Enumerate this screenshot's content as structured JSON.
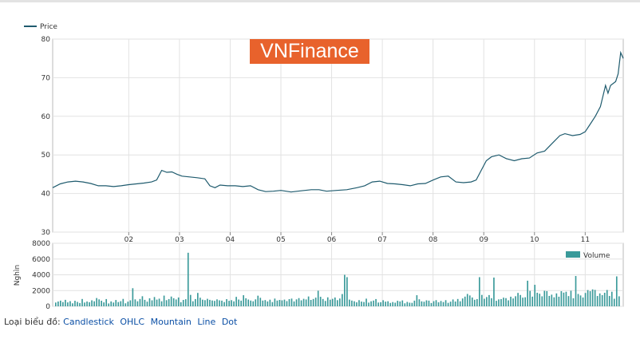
{
  "watermark": "VNFinance",
  "chart_type_switcher": {
    "label": "Loại biểu đồ:",
    "options": [
      "Candlestick",
      "OHLC",
      "Mountain",
      "Line",
      "Dot"
    ]
  },
  "colors": {
    "price_line": "#1f5b6e",
    "volume_bar": "#3a9a9a",
    "watermark_bg": "#e8622c"
  },
  "chart_data": [
    {
      "type": "line",
      "legend": [
        "Price"
      ],
      "legend_placement": "top-left",
      "grid": true,
      "ylim": [
        30,
        80
      ],
      "yticks": [
        30,
        40,
        50,
        60,
        70,
        80
      ],
      "xlim": [
        0.5,
        11.75
      ],
      "xticks": [
        {
          "v": 2,
          "label": "02"
        },
        {
          "v": 3,
          "label": "03"
        },
        {
          "v": 4,
          "label": "04"
        },
        {
          "v": 5,
          "label": "05"
        },
        {
          "v": 6,
          "label": "06"
        },
        {
          "v": 7,
          "label": "07"
        },
        {
          "v": 8,
          "label": "08"
        },
        {
          "v": 9,
          "label": "09"
        },
        {
          "v": 10,
          "label": "10"
        },
        {
          "v": 11,
          "label": "11"
        }
      ],
      "series": [
        {
          "name": "Price",
          "points": [
            [
              0.5,
              41.5
            ],
            [
              0.65,
              42.5
            ],
            [
              0.8,
              43.0
            ],
            [
              0.95,
              43.2
            ],
            [
              1.1,
              43.0
            ],
            [
              1.25,
              42.6
            ],
            [
              1.4,
              42.0
            ],
            [
              1.55,
              42.0
            ],
            [
              1.7,
              41.8
            ],
            [
              1.85,
              42.0
            ],
            [
              2.0,
              42.3
            ],
            [
              2.15,
              42.5
            ],
            [
              2.3,
              42.7
            ],
            [
              2.45,
              43.0
            ],
            [
              2.55,
              43.5
            ],
            [
              2.65,
              46.0
            ],
            [
              2.75,
              45.5
            ],
            [
              2.85,
              45.6
            ],
            [
              2.95,
              45.0
            ],
            [
              3.05,
              44.5
            ],
            [
              3.2,
              44.3
            ],
            [
              3.35,
              44.1
            ],
            [
              3.5,
              43.8
            ],
            [
              3.6,
              42.0
            ],
            [
              3.7,
              41.5
            ],
            [
              3.8,
              42.2
            ],
            [
              3.95,
              42.0
            ],
            [
              4.1,
              42.0
            ],
            [
              4.25,
              41.8
            ],
            [
              4.4,
              42.0
            ],
            [
              4.55,
              41.0
            ],
            [
              4.7,
              40.5
            ],
            [
              4.85,
              40.6
            ],
            [
              5.0,
              40.8
            ],
            [
              5.2,
              40.4
            ],
            [
              5.4,
              40.7
            ],
            [
              5.6,
              41.0
            ],
            [
              5.75,
              41.0
            ],
            [
              5.9,
              40.6
            ],
            [
              6.1,
              40.8
            ],
            [
              6.3,
              41.0
            ],
            [
              6.5,
              41.5
            ],
            [
              6.65,
              42.0
            ],
            [
              6.8,
              43.0
            ],
            [
              6.95,
              43.2
            ],
            [
              7.1,
              42.6
            ],
            [
              7.25,
              42.5
            ],
            [
              7.4,
              42.3
            ],
            [
              7.55,
              42.0
            ],
            [
              7.7,
              42.5
            ],
            [
              7.85,
              42.6
            ],
            [
              8.0,
              43.5
            ],
            [
              8.15,
              44.3
            ],
            [
              8.3,
              44.5
            ],
            [
              8.45,
              43.0
            ],
            [
              8.6,
              42.8
            ],
            [
              8.75,
              43.0
            ],
            [
              8.85,
              43.5
            ],
            [
              8.95,
              46.0
            ],
            [
              9.05,
              48.5
            ],
            [
              9.15,
              49.5
            ],
            [
              9.3,
              50.0
            ],
            [
              9.45,
              49.0
            ],
            [
              9.6,
              48.5
            ],
            [
              9.75,
              49.0
            ],
            [
              9.9,
              49.2
            ],
            [
              10.05,
              50.5
            ],
            [
              10.2,
              51.0
            ],
            [
              10.35,
              53.0
            ],
            [
              10.5,
              55.0
            ],
            [
              10.6,
              55.5
            ],
            [
              10.75,
              55.0
            ],
            [
              10.9,
              55.3
            ],
            [
              11.0,
              56.0
            ],
            [
              11.1,
              58.0
            ],
            [
              11.2,
              60.0
            ],
            [
              11.3,
              62.5
            ],
            [
              11.4,
              68.0
            ],
            [
              11.45,
              66.0
            ],
            [
              11.5,
              68.0
            ],
            [
              11.6,
              69.0
            ],
            [
              11.65,
              71.0
            ],
            [
              11.7,
              76.5
            ],
            [
              11.75,
              75.0
            ]
          ]
        }
      ]
    },
    {
      "type": "bar",
      "ylabel": "Nghìn",
      "legend": [
        "Volume"
      ],
      "legend_placement": "top-right",
      "grid": true,
      "ylim": [
        0,
        8000
      ],
      "yticks": [
        0,
        2000,
        4000,
        6000,
        8000
      ],
      "series": [
        {
          "name": "Volume",
          "values": [
            480,
            610,
            720,
            540,
            820,
            500,
            650,
            380,
            700,
            560,
            420,
            930,
            480,
            610,
            520,
            760,
            640,
            1050,
            880,
            710,
            500,
            920,
            360,
            620,
            480,
            800,
            540,
            650,
            940,
            380,
            590,
            760,
            2300,
            880,
            640,
            930,
            1280,
            820,
            590,
            1020,
            760,
            1180,
            850,
            970,
            640,
            1360,
            780,
            920,
            1240,
            1030,
            870,
            1120,
            520,
            810,
            900,
            6800,
            1450,
            640,
            920,
            1700,
            1090,
            840,
            780,
            950,
            820,
            740,
            690,
            880,
            760,
            720,
            540,
            910,
            700,
            780,
            630,
            1200,
            860,
            720,
            1410,
            1020,
            860,
            730,
            640,
            880,
            1350,
            1080,
            730,
            790,
            620,
            840,
            540,
            980,
            730,
            810,
            760,
            850,
            660,
            910,
            980,
            620,
            880,
            1040,
            760,
            950,
            870,
            1250,
            810,
            930,
            1100,
            1980,
            1210,
            930,
            680,
            1140,
            840,
            950,
            1120,
            780,
            990,
            1560,
            4000,
            3700,
            850,
            730,
            640,
            510,
            780,
            600,
            550,
            970,
            470,
            640,
            730,
            920,
            480,
            520,
            770,
            590,
            640,
            430,
            540,
            460,
            700,
            620,
            750,
            380,
            560,
            460,
            440,
            720,
            1410,
            890,
            630,
            580,
            760,
            720,
            420,
            650,
            780,
            510,
            680,
            540,
            780,
            440,
            590,
            870,
            610,
            930,
            640,
            1000,
            1230,
            1570,
            1380,
            1120,
            830,
            920,
            3700,
            1450,
            960,
            1180,
            1430,
            1030,
            3650,
            700,
            880,
            920,
            1100,
            1040,
            760,
            1220,
            1000,
            1280,
            1700,
            1440,
            1100,
            1150,
            3250,
            1960,
            1230,
            2730,
            1720,
            1600,
            1270,
            1970,
            1930,
            1320,
            1480,
            1140,
            1640,
            1220,
            1920,
            1740,
            1850,
            1300,
            1980,
            1020,
            3850,
            1570,
            1380,
            1120,
            1700,
            2060,
            1920,
            2150,
            2080,
            1310,
            1640,
            1420,
            1720,
            2070,
            1310,
            1850,
            960,
            3800,
            1270
          ]
        }
      ]
    }
  ]
}
